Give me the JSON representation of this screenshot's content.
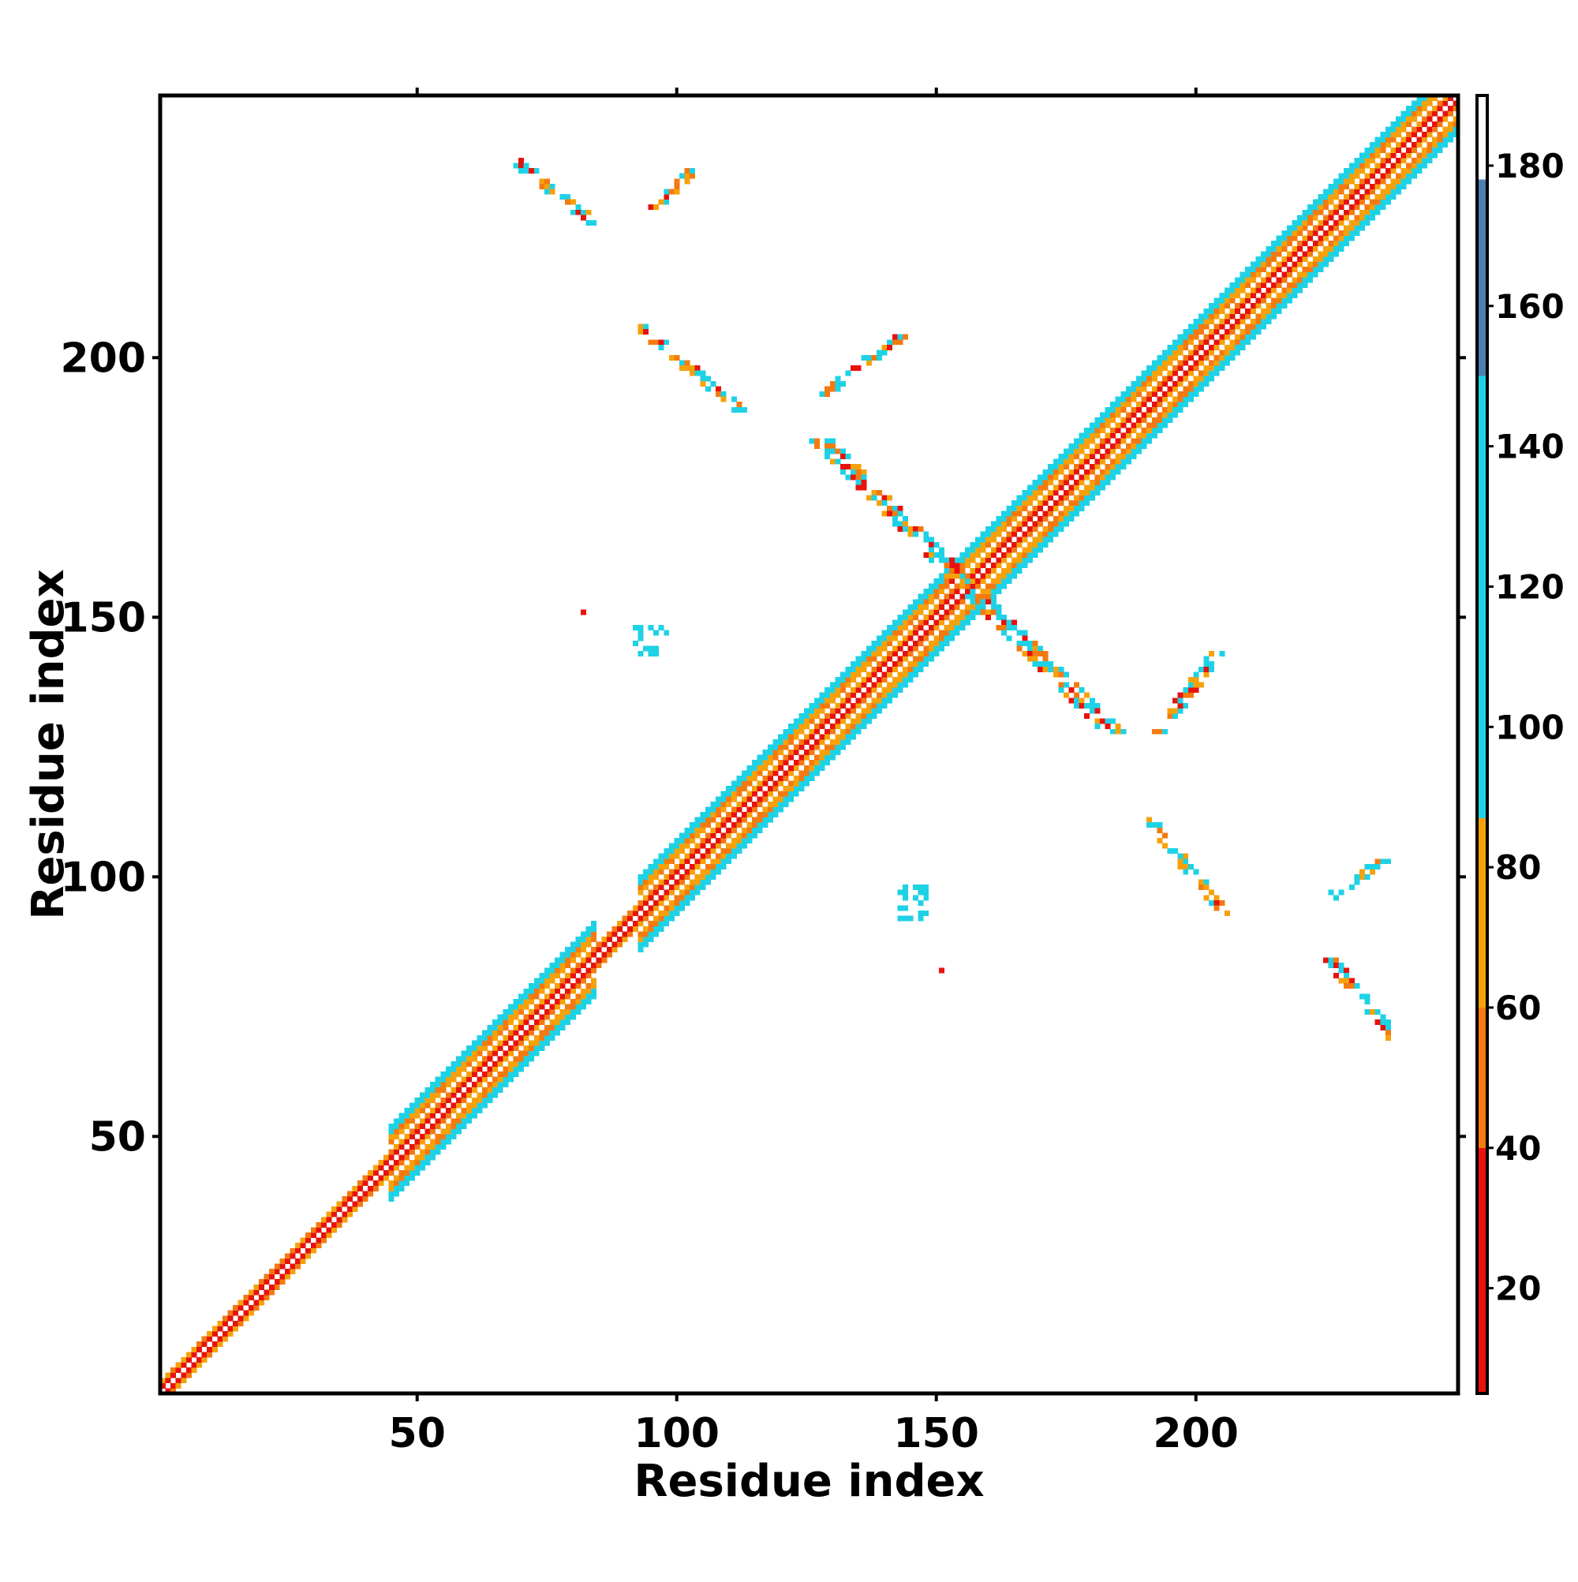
{
  "chart_data": {
    "type": "heatmap",
    "title": "",
    "xlabel": "Residue index",
    "ylabel": "Residue index",
    "xlim": [
      1,
      250
    ],
    "ylim": [
      1,
      250
    ],
    "x_ticks": [
      50,
      100,
      150,
      200
    ],
    "y_ticks": [
      50,
      100,
      150,
      200
    ],
    "colorbar": {
      "range": [
        5,
        190
      ],
      "ticks": [
        20,
        40,
        60,
        80,
        100,
        120,
        140,
        160,
        180
      ],
      "bands": [
        {
          "from": 5,
          "to": 40,
          "color": "#e8120c"
        },
        {
          "from": 40,
          "to": 60,
          "color": "#f47a10"
        },
        {
          "from": 60,
          "to": 87,
          "color": "#f7a10a"
        },
        {
          "from": 87,
          "to": 150,
          "color": "#1ed2e6"
        },
        {
          "from": 150,
          "to": 178,
          "color": "#4a7fb0"
        },
        {
          "from": 178,
          "to": 190,
          "color": "#ffffff"
        }
      ]
    },
    "grid": false,
    "contact_features": [
      {
        "kind": "diagonal",
        "from": [
          1,
          1
        ],
        "to": [
          250,
          250
        ],
        "half_width": 7
      },
      {
        "kind": "anti_parallel",
        "from": [
          128,
          184
        ],
        "to": [
          184,
          128
        ],
        "half_width": 2
      },
      {
        "kind": "anti_parallel",
        "from": [
          93,
          206
        ],
        "to": [
          112,
          190
        ],
        "half_width": 1
      },
      {
        "kind": "anti_parallel",
        "from": [
          190,
          112
        ],
        "to": [
          206,
          93
        ],
        "half_width": 1
      },
      {
        "kind": "anti_parallel",
        "from": [
          69,
          238
        ],
        "to": [
          84,
          226
        ],
        "half_width": 1
      },
      {
        "kind": "anti_parallel",
        "from": [
          226,
          84
        ],
        "to": [
          238,
          69
        ],
        "half_width": 1
      },
      {
        "kind": "parallel",
        "from": [
          128,
          193
        ],
        "to": [
          143,
          204
        ],
        "half_width": 1
      },
      {
        "kind": "parallel",
        "from": [
          193,
          128
        ],
        "to": [
          204,
          143
        ],
        "half_width": 1
      },
      {
        "kind": "parallel",
        "from": [
          96,
          229
        ],
        "to": [
          103,
          236
        ],
        "half_width": 1
      },
      {
        "kind": "parallel",
        "from": [
          226,
          96
        ],
        "to": [
          236,
          103
        ],
        "half_width": 1
      },
      {
        "kind": "point",
        "at": [
          82,
          151
        ]
      },
      {
        "kind": "point",
        "at": [
          151,
          82
        ]
      },
      {
        "kind": "patch",
        "from": [
          92,
          143
        ],
        "to": [
          98,
          148
        ]
      },
      {
        "kind": "patch",
        "from": [
          143,
          92
        ],
        "to": [
          148,
          98
        ]
      }
    ]
  }
}
